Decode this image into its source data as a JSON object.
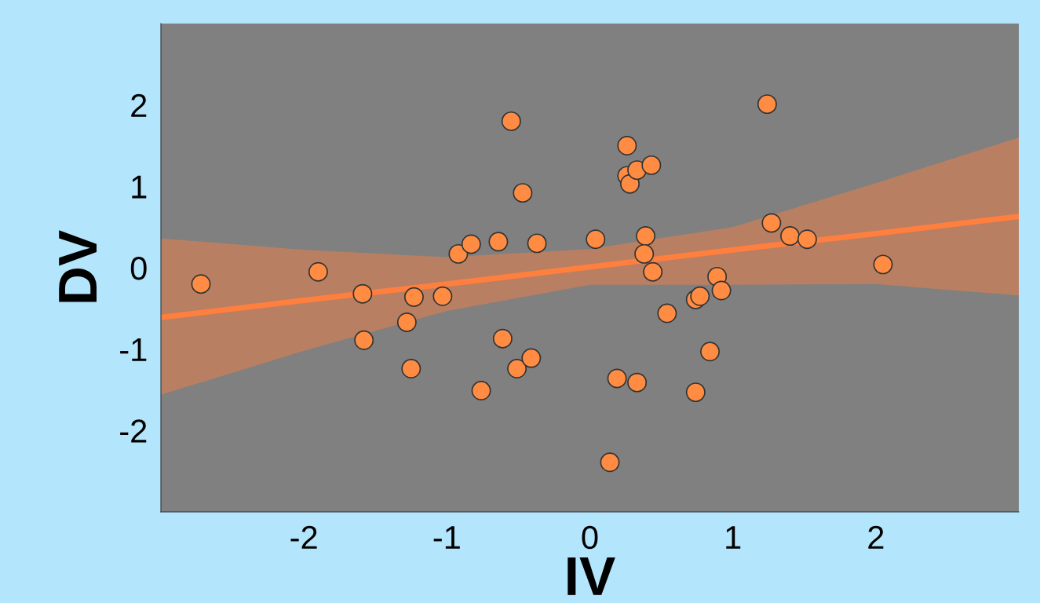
{
  "chart_data": {
    "type": "scatter",
    "xlabel": "IV",
    "ylabel": "DV",
    "xlim": [
      -3,
      3
    ],
    "ylim": [
      -3,
      3
    ],
    "xticks": [
      -2,
      -1,
      0,
      1,
      2
    ],
    "yticks": [
      -2,
      -1,
      0,
      1,
      2
    ],
    "grid": false,
    "legend": false,
    "series": [
      {
        "marker": "circle",
        "color": "#ff8c42",
        "x": [
          -2.72,
          -1.9,
          -1.59,
          -1.58,
          -1.23,
          -1.28,
          -1.25,
          -1.03,
          -0.92,
          -0.83,
          -0.76,
          -0.64,
          -0.61,
          -0.55,
          -0.51,
          -0.47,
          -0.41,
          -0.37,
          0.04,
          0.14,
          0.19,
          0.26,
          0.26,
          0.28,
          0.33,
          0.33,
          0.43,
          0.39,
          0.38,
          0.44,
          0.54,
          0.74,
          0.77,
          0.74,
          0.84,
          0.89,
          0.92,
          1.24,
          1.27,
          1.4,
          1.52,
          2.05
        ],
        "values": [
          -0.2,
          -0.05,
          -0.32,
          -0.89,
          -0.36,
          -0.67,
          -1.24,
          -0.35,
          0.17,
          0.29,
          -1.51,
          0.32,
          -0.87,
          1.8,
          -1.24,
          0.92,
          -1.11,
          0.3,
          0.35,
          -2.39,
          -1.36,
          1.5,
          1.13,
          1.03,
          -1.41,
          1.2,
          1.26,
          0.39,
          0.17,
          -0.05,
          -0.56,
          -0.39,
          -0.35,
          -1.53,
          -1.03,
          -0.11,
          -0.28,
          2.01,
          0.55,
          0.39,
          0.35,
          0.04
        ]
      },
      {
        "type": "line",
        "marker": "none",
        "color": "#ff7f3f",
        "line_style": "solid",
        "x": [
          -3,
          -2,
          -1,
          0,
          1,
          2,
          3
        ],
        "values": [
          -0.61,
          -0.4,
          -0.2,
          0.01,
          0.22,
          0.42,
          0.63
        ],
        "lower": [
          -1.56,
          -1.02,
          -0.53,
          -0.21,
          -0.21,
          -0.2,
          -0.34
        ],
        "upper": [
          0.36,
          0.22,
          0.13,
          0.23,
          0.5,
          1.04,
          1.6
        ]
      }
    ]
  }
}
